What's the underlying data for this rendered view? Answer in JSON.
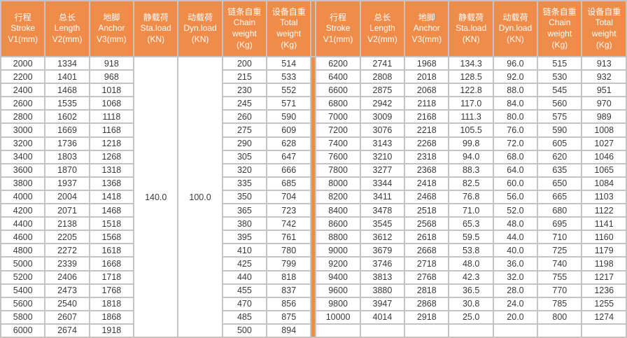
{
  "table": {
    "accent_color": "#ef8c49",
    "grid_color": "#c5c4c3",
    "text_color": "#3a3a3a",
    "header_text_color": "#ffffff",
    "columns": [
      "行程\nStroke\nV1(mm)",
      "总长\nLength\nV2(mm)",
      "地脚\nAnchor\nV3(mm)",
      "静载荷\nSta.load\n(KN)",
      "动载荷\nDyn.load\n(KN)",
      "链条自重\nChain\nweight\n(Kg)",
      "设备自重\nTotal\nweight\n(Kg)"
    ],
    "left": {
      "sta_load": "140.0",
      "dyn_load": "100.0",
      "rows": [
        [
          "2000",
          "1334",
          "918",
          "200",
          "514"
        ],
        [
          "2200",
          "1401",
          "968",
          "215",
          "533"
        ],
        [
          "2400",
          "1468",
          "1018",
          "230",
          "552"
        ],
        [
          "2600",
          "1535",
          "1068",
          "245",
          "571"
        ],
        [
          "2800",
          "1602",
          "1118",
          "260",
          "590"
        ],
        [
          "3000",
          "1669",
          "1168",
          "275",
          "609"
        ],
        [
          "3200",
          "1736",
          "1218",
          "290",
          "628"
        ],
        [
          "3400",
          "1803",
          "1268",
          "305",
          "647"
        ],
        [
          "3600",
          "1870",
          "1318",
          "320",
          "666"
        ],
        [
          "3800",
          "1937",
          "1368",
          "335",
          "685"
        ],
        [
          "4000",
          "2004",
          "1418",
          "350",
          "704"
        ],
        [
          "4200",
          "2071",
          "1468",
          "365",
          "723"
        ],
        [
          "4400",
          "2138",
          "1518",
          "380",
          "742"
        ],
        [
          "4600",
          "2205",
          "1568",
          "395",
          "761"
        ],
        [
          "4800",
          "2272",
          "1618",
          "410",
          "780"
        ],
        [
          "5000",
          "2339",
          "1668",
          "425",
          "799"
        ],
        [
          "5200",
          "2406",
          "1718",
          "440",
          "818"
        ],
        [
          "5400",
          "2473",
          "1768",
          "455",
          "837"
        ],
        [
          "5600",
          "2540",
          "1818",
          "470",
          "856"
        ],
        [
          "5800",
          "2607",
          "1868",
          "485",
          "875"
        ],
        [
          "6000",
          "2674",
          "1918",
          "500",
          "894"
        ]
      ]
    },
    "right": {
      "rows": [
        [
          "6200",
          "2741",
          "1968",
          "134.3",
          "96.0",
          "515",
          "913"
        ],
        [
          "6400",
          "2808",
          "2018",
          "128.5",
          "92.0",
          "530",
          "932"
        ],
        [
          "6600",
          "2875",
          "2068",
          "122.8",
          "88.0",
          "545",
          "951"
        ],
        [
          "6800",
          "2942",
          "2118",
          "117.0",
          "84.0",
          "560",
          "970"
        ],
        [
          "7000",
          "3009",
          "2168",
          "111.3",
          "80.0",
          "575",
          "989"
        ],
        [
          "7200",
          "3076",
          "2218",
          "105.5",
          "76.0",
          "590",
          "1008"
        ],
        [
          "7400",
          "3143",
          "2268",
          "99.8",
          "72.0",
          "605",
          "1027"
        ],
        [
          "7600",
          "3210",
          "2318",
          "94.0",
          "68.0",
          "620",
          "1046"
        ],
        [
          "7800",
          "3277",
          "2368",
          "88.3",
          "64.0",
          "635",
          "1065"
        ],
        [
          "8000",
          "3344",
          "2418",
          "82.5",
          "60.0",
          "650",
          "1084"
        ],
        [
          "8200",
          "3411",
          "2468",
          "76.8",
          "56.0",
          "665",
          "1103"
        ],
        [
          "8400",
          "3478",
          "2518",
          "71.0",
          "52.0",
          "680",
          "1122"
        ],
        [
          "8600",
          "3545",
          "2568",
          "65.3",
          "48.0",
          "695",
          "1141"
        ],
        [
          "8800",
          "3612",
          "2618",
          "59.5",
          "44.0",
          "710",
          "1160"
        ],
        [
          "9000",
          "3679",
          "2668",
          "53.8",
          "40.0",
          "725",
          "1179"
        ],
        [
          "9200",
          "3746",
          "2718",
          "48.0",
          "36.0",
          "740",
          "1198"
        ],
        [
          "9400",
          "3813",
          "2768",
          "42.3",
          "32.0",
          "755",
          "1217"
        ],
        [
          "9600",
          "3880",
          "2818",
          "36.5",
          "28.0",
          "770",
          "1236"
        ],
        [
          "9800",
          "3947",
          "2868",
          "30.8",
          "24.0",
          "785",
          "1255"
        ],
        [
          "10000",
          "4014",
          "2918",
          "25.0",
          "20.0",
          "800",
          "1274"
        ],
        [
          "",
          "",
          "",
          "",
          "",
          "",
          ""
        ]
      ]
    }
  }
}
